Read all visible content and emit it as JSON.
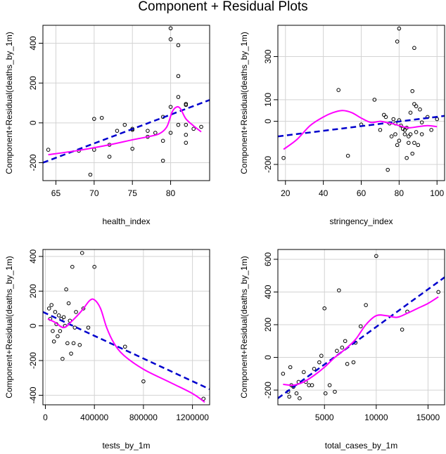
{
  "title": "Component + Residual Plots",
  "colors": {
    "smooth": "#ff00ff",
    "fit": "#0000cd",
    "grid": "#d3d3d3",
    "points": "#000000"
  },
  "chart_data": [
    {
      "type": "scatter",
      "xlabel": "health_index",
      "ylabel": "Component+Residual(deaths_by_1m)",
      "xlim": [
        63.3,
        85.1
      ],
      "ylim": [
        -290,
        490
      ],
      "xticks": [
        65,
        70,
        75,
        80
      ],
      "yticks": [
        -200,
        0,
        200,
        400
      ],
      "grid": true,
      "points": [
        [
          64,
          -135
        ],
        [
          68,
          -140
        ],
        [
          69.5,
          -260
        ],
        [
          70,
          20
        ],
        [
          70,
          -135
        ],
        [
          71,
          25
        ],
        [
          72,
          -110
        ],
        [
          72,
          -170
        ],
        [
          73,
          -40
        ],
        [
          74,
          -10
        ],
        [
          75,
          -30
        ],
        [
          75,
          -35
        ],
        [
          75,
          -130
        ],
        [
          77,
          -40
        ],
        [
          77,
          -70
        ],
        [
          78,
          -50
        ],
        [
          79,
          -190
        ],
        [
          79,
          30
        ],
        [
          79,
          -90
        ],
        [
          80,
          475
        ],
        [
          80,
          420
        ],
        [
          80,
          80
        ],
        [
          80,
          -50
        ],
        [
          81,
          390
        ],
        [
          81,
          235
        ],
        [
          81,
          130
        ],
        [
          81,
          -10
        ],
        [
          82,
          90
        ],
        [
          82,
          95
        ],
        [
          82,
          -10
        ],
        [
          82,
          -60
        ],
        [
          82,
          -100
        ],
        [
          83,
          -30
        ],
        [
          84,
          -20
        ]
      ],
      "fit_line": [
        [
          63.3,
          -200
        ],
        [
          85.1,
          115
        ]
      ],
      "smooth_line": [
        [
          64,
          -160
        ],
        [
          68,
          -138
        ],
        [
          72,
          -110
        ],
        [
          75,
          -85
        ],
        [
          77,
          -70
        ],
        [
          78.5,
          -55
        ],
        [
          79.5,
          -20
        ],
        [
          80.2,
          55
        ],
        [
          80.8,
          80
        ],
        [
          81.3,
          70
        ],
        [
          82,
          20
        ],
        [
          83,
          -15
        ],
        [
          84,
          -45
        ]
      ]
    },
    {
      "type": "scatter",
      "xlabel": "stringency_index",
      "ylabel": "Component+Residual(deaths_by_1m)",
      "xlim": [
        16,
        104
      ],
      "ylim": [
        -275,
        445
      ],
      "xticks": [
        20,
        40,
        60,
        80,
        100
      ],
      "yticks": [
        -200,
        0,
        100,
        300
      ],
      "grid": true,
      "points": [
        [
          19,
          -170
        ],
        [
          48,
          145
        ],
        [
          53,
          -160
        ],
        [
          60,
          -15
        ],
        [
          67,
          100
        ],
        [
          70,
          -40
        ],
        [
          72,
          30
        ],
        [
          73,
          20
        ],
        [
          74,
          -225
        ],
        [
          75,
          -10
        ],
        [
          76,
          -70
        ],
        [
          77,
          10
        ],
        [
          78,
          -10
        ],
        [
          78,
          -60
        ],
        [
          79,
          370
        ],
        [
          79,
          -110
        ],
        [
          80,
          430
        ],
        [
          80,
          -90
        ],
        [
          80,
          5
        ],
        [
          81,
          -20
        ],
        [
          82,
          -35
        ],
        [
          83,
          -40
        ],
        [
          83,
          -60
        ],
        [
          84,
          -170
        ],
        [
          84,
          -30
        ],
        [
          85,
          -100
        ],
        [
          85,
          -70
        ],
        [
          86,
          40
        ],
        [
          86,
          -60
        ],
        [
          87,
          140
        ],
        [
          87,
          -150
        ],
        [
          88,
          340
        ],
        [
          88,
          80
        ],
        [
          88,
          -100
        ],
        [
          89,
          70
        ],
        [
          89,
          -50
        ],
        [
          90,
          -110
        ],
        [
          91,
          55
        ],
        [
          92,
          -5
        ],
        [
          92,
          -60
        ],
        [
          95,
          20
        ],
        [
          97,
          -40
        ],
        [
          100,
          10
        ]
      ],
      "fit_line": [
        [
          16,
          -70
        ],
        [
          104,
          25
        ]
      ],
      "smooth_line": [
        [
          19,
          -130
        ],
        [
          26,
          -85
        ],
        [
          33,
          -20
        ],
        [
          40,
          20
        ],
        [
          45,
          40
        ],
        [
          50,
          50
        ],
        [
          55,
          40
        ],
        [
          60,
          15
        ],
        [
          65,
          -5
        ],
        [
          70,
          0
        ],
        [
          73,
          -5
        ],
        [
          76,
          -10
        ],
        [
          80,
          -20
        ],
        [
          85,
          -30
        ],
        [
          90,
          -25
        ],
        [
          95,
          -20
        ],
        [
          100,
          -25
        ]
      ]
    },
    {
      "type": "scatter",
      "xlabel": "tests_by_1m",
      "ylabel": "Component+Residual(deaths_by_1m)",
      "xlim": [
        -20000,
        1340000
      ],
      "ylim": [
        -455,
        440
      ],
      "xticks": [
        0,
        400000,
        800000,
        1200000
      ],
      "yticks": [
        -400,
        -200,
        0,
        200,
        400
      ],
      "grid": true,
      "points": [
        [
          30000,
          100
        ],
        [
          40000,
          40
        ],
        [
          50000,
          120
        ],
        [
          60000,
          -30
        ],
        [
          70000,
          -90
        ],
        [
          80000,
          80
        ],
        [
          90000,
          10
        ],
        [
          100000,
          -60
        ],
        [
          110000,
          60
        ],
        [
          120000,
          -30
        ],
        [
          130000,
          40
        ],
        [
          140000,
          -190
        ],
        [
          150000,
          50
        ],
        [
          160000,
          0
        ],
        [
          170000,
          210
        ],
        [
          180000,
          -100
        ],
        [
          190000,
          130
        ],
        [
          200000,
          30
        ],
        [
          210000,
          -160
        ],
        [
          220000,
          340
        ],
        [
          230000,
          -100
        ],
        [
          240000,
          -10
        ],
        [
          250000,
          80
        ],
        [
          280000,
          -110
        ],
        [
          300000,
          420
        ],
        [
          310000,
          100
        ],
        [
          350000,
          -10
        ],
        [
          400000,
          340
        ],
        [
          650000,
          -120
        ],
        [
          800000,
          -320
        ],
        [
          1290000,
          -420
        ]
      ],
      "fit_line": [
        [
          -20000,
          80
        ],
        [
          1340000,
          -365
        ]
      ],
      "smooth_line": [
        [
          20000,
          40
        ],
        [
          80000,
          20
        ],
        [
          150000,
          -10
        ],
        [
          220000,
          30
        ],
        [
          300000,
          90
        ],
        [
          360000,
          145
        ],
        [
          400000,
          150
        ],
        [
          450000,
          100
        ],
        [
          500000,
          -10
        ],
        [
          560000,
          -100
        ],
        [
          640000,
          -170
        ],
        [
          800000,
          -250
        ],
        [
          1000000,
          -320
        ],
        [
          1200000,
          -390
        ],
        [
          1300000,
          -440
        ]
      ]
    },
    {
      "type": "scatter",
      "xlabel": "total_cases_by_1m",
      "ylabel": "Component+Residual(deaths_by_1m)",
      "xlim": [
        500,
        16600
      ],
      "ylim": [
        -290,
        660
      ],
      "xticks": [
        5000,
        10000,
        15000
      ],
      "yticks": [
        -200,
        0,
        200,
        400,
        600
      ],
      "grid": true,
      "points": [
        [
          1000,
          -100
        ],
        [
          1500,
          -210
        ],
        [
          1600,
          -240
        ],
        [
          1700,
          -60
        ],
        [
          1800,
          -170
        ],
        [
          2000,
          -180
        ],
        [
          2300,
          -220
        ],
        [
          2500,
          -150
        ],
        [
          2600,
          -250
        ],
        [
          3000,
          -90
        ],
        [
          3200,
          -150
        ],
        [
          3500,
          -170
        ],
        [
          3800,
          -170
        ],
        [
          4000,
          -70
        ],
        [
          4500,
          -30
        ],
        [
          4700,
          10
        ],
        [
          5000,
          300
        ],
        [
          5100,
          -220
        ],
        [
          5500,
          -170
        ],
        [
          6000,
          -210
        ],
        [
          6200,
          40
        ],
        [
          6400,
          410
        ],
        [
          6700,
          60
        ],
        [
          7000,
          100
        ],
        [
          7200,
          -40
        ],
        [
          7800,
          -30
        ],
        [
          8000,
          90
        ],
        [
          8500,
          190
        ],
        [
          9000,
          320
        ],
        [
          10000,
          620
        ],
        [
          12500,
          170
        ],
        [
          13000,
          280
        ],
        [
          16000,
          400
        ]
      ],
      "fit_line": [
        [
          500,
          -250
        ],
        [
          16600,
          490
        ]
      ],
      "smooth_line": [
        [
          1000,
          -165
        ],
        [
          2000,
          -170
        ],
        [
          3000,
          -150
        ],
        [
          4000,
          -110
        ],
        [
          5000,
          -60
        ],
        [
          6000,
          0
        ],
        [
          7000,
          50
        ],
        [
          8000,
          110
        ],
        [
          9000,
          200
        ],
        [
          10000,
          255
        ],
        [
          11000,
          255
        ],
        [
          12000,
          245
        ],
        [
          13000,
          270
        ],
        [
          14000,
          300
        ],
        [
          15000,
          330
        ],
        [
          16000,
          370
        ]
      ]
    }
  ]
}
